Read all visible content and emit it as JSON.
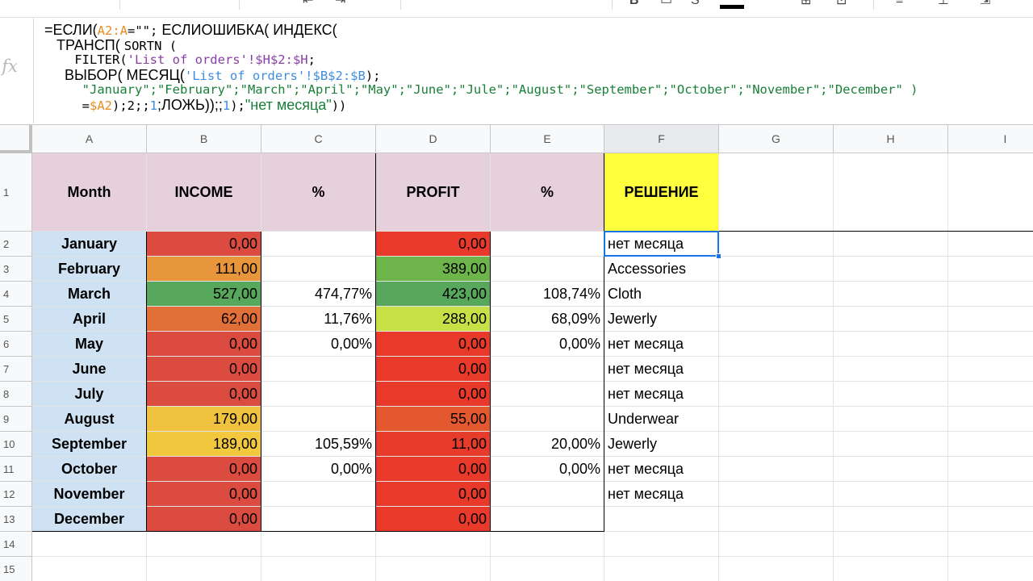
{
  "formula": {
    "fx_label": "fx",
    "line1": {
      "a": "=ЕСЛИ(",
      "b": "A2:A",
      "c": "=\"\";",
      "d": " ЕСЛИОШИБКА( ИНДЕКС("
    },
    "line2": {
      "a": "   ТРАНСП( ",
      "b": "SORTN ("
    },
    "line3": {
      "a": "    FILTER(",
      "b": "'List of orders'!$H$2:$H",
      "c": ";"
    },
    "line4": {
      "a": "     ВЫБОР( МЕСЯЦ(",
      "b": "'List of orders'!$B$2:$B",
      "c": ");"
    },
    "line5": {
      "text": "     \"January\";\"February\";\"March\";\"April\";\"May\";\"June\";\"Jule\";\"August\";\"September\";\"October\";\"November\";\"December\" )"
    },
    "line6": {
      "a": "     =",
      "b": "$A2",
      "c": ");2;;",
      "d": "1",
      "e": ";ЛОЖЬ));;",
      "f": "1",
      "g": ");",
      "h": "\"нет месяца\"",
      "i": "))"
    }
  },
  "columns": [
    "A",
    "B",
    "C",
    "D",
    "E",
    "F",
    "G",
    "H",
    "I"
  ],
  "rows": [
    "1",
    "2",
    "3",
    "4",
    "5",
    "6",
    "7",
    "8",
    "9",
    "10",
    "11",
    "12",
    "13",
    "14",
    "15"
  ],
  "headers": {
    "month": "Month",
    "income": "INCOME",
    "pct1": "%",
    "profit": "PROFIT",
    "pct2": "%",
    "reshenie": "РЕШЕНИЕ"
  },
  "table": [
    {
      "month": "January",
      "income": "0,00",
      "income_color": "#db4b3f",
      "pct1": "",
      "profit": "0,00",
      "profit_color": "#e8392b",
      "pct2": "",
      "reshenie": "нет месяца"
    },
    {
      "month": "February",
      "income": "111,00",
      "income_color": "#e8963c",
      "pct1": "",
      "profit": "389,00",
      "profit_color": "#6db54b",
      "pct2": "",
      "reshenie": "Accessories"
    },
    {
      "month": "March",
      "income": "527,00",
      "income_color": "#57a85c",
      "pct1": "474,77%",
      "profit": "423,00",
      "profit_color": "#57a85c",
      "pct2": "108,74%",
      "reshenie": "Cloth"
    },
    {
      "month": "April",
      "income": "62,00",
      "income_color": "#e07038",
      "pct1": "11,76%",
      "profit": "288,00",
      "profit_color": "#c6e045",
      "pct2": "68,09%",
      "reshenie": "Jewerly"
    },
    {
      "month": "May",
      "income": "0,00",
      "income_color": "#db4b3f",
      "pct1": "0,00%",
      "profit": "0,00",
      "profit_color": "#e8392b",
      "pct2": "0,00%",
      "reshenie": "нет месяца"
    },
    {
      "month": "June",
      "income": "0,00",
      "income_color": "#db4b3f",
      "pct1": "",
      "profit": "0,00",
      "profit_color": "#e8392b",
      "pct2": "",
      "reshenie": "нет месяца"
    },
    {
      "month": "July",
      "income": "0,00",
      "income_color": "#db4b3f",
      "pct1": "",
      "profit": "0,00",
      "profit_color": "#e8392b",
      "pct2": "",
      "reshenie": "нет месяца"
    },
    {
      "month": "August",
      "income": "179,00",
      "income_color": "#f0c23e",
      "pct1": "",
      "profit": "55,00",
      "profit_color": "#e4582f",
      "pct2": "",
      "reshenie": "Underwear"
    },
    {
      "month": "September",
      "income": "189,00",
      "income_color": "#f2c83f",
      "pct1": "105,59%",
      "profit": "11,00",
      "profit_color": "#e73c2b",
      "pct2": "20,00%",
      "reshenie": "Jewerly"
    },
    {
      "month": "October",
      "income": "0,00",
      "income_color": "#db4b3f",
      "pct1": "0,00%",
      "profit": "0,00",
      "profit_color": "#e8392b",
      "pct2": "0,00%",
      "reshenie": "нет месяца"
    },
    {
      "month": "November",
      "income": "0,00",
      "income_color": "#db4b3f",
      "pct1": "",
      "profit": "0,00",
      "profit_color": "#e8392b",
      "pct2": "",
      "reshenie": "нет месяца"
    },
    {
      "month": "December",
      "income": "0,00",
      "income_color": "#db4b3f",
      "pct1": "",
      "profit": "0,00",
      "profit_color": "#e8392b",
      "pct2": "",
      "reshenie": ""
    }
  ],
  "colors": {
    "header_bg": "#e6d0dc",
    "reshenie_header_bg": "#ffff3d",
    "month_bg": "#cfe2f3",
    "selection": "#1a73e8"
  },
  "selected_cell": "F2"
}
